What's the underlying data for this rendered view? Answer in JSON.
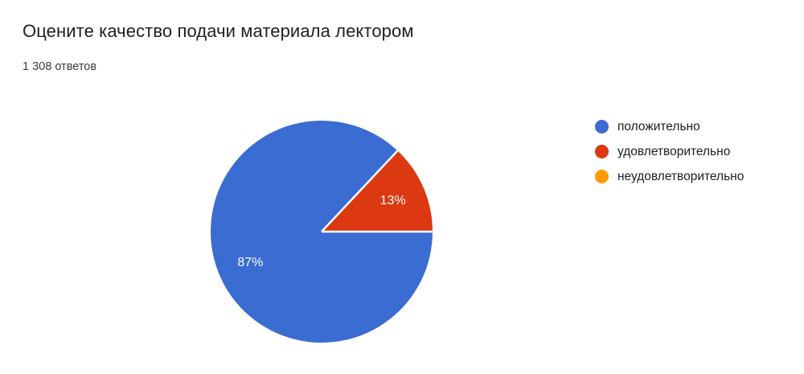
{
  "header": {
    "title": "Оцените качество подачи материала лектором",
    "responses": "1 308 ответов"
  },
  "chart_data": {
    "type": "pie",
    "title": "Оцените качество подачи материала лектором",
    "subtitle": "1 308 ответов",
    "total_responses": 1308,
    "categories": [
      "положительно",
      "удовлетворительно",
      "неудовлетворительно"
    ],
    "values": [
      87,
      13,
      0
    ],
    "unit": "percent",
    "slice_labels": [
      "87%",
      "13%",
      ""
    ],
    "colors": [
      "#3B6CD1",
      "#DC3912",
      "#FF9900"
    ],
    "slice_label_color": "#FFFFFF",
    "legend_position": "right",
    "start_angle": "3-oclock",
    "direction": "clockwise",
    "separator_color": "#FFFFFF"
  }
}
